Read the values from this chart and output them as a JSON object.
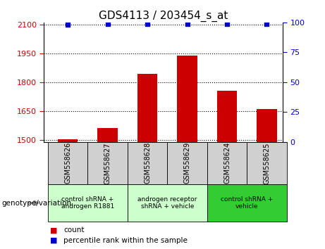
{
  "title": "GDS4113 / 203454_s_at",
  "samples": [
    "GSM558626",
    "GSM558627",
    "GSM558628",
    "GSM558629",
    "GSM558624",
    "GSM558625"
  ],
  "counts": [
    1504,
    1562,
    1843,
    1938,
    1755,
    1660
  ],
  "percentiles": [
    98,
    99,
    99,
    99,
    99,
    99
  ],
  "ylim_left": [
    1490,
    2110
  ],
  "ylim_right": [
    0,
    100
  ],
  "yticks_left": [
    1500,
    1650,
    1800,
    1950,
    2100
  ],
  "yticks_right": [
    0,
    25,
    50,
    75,
    100
  ],
  "bar_color": "#cc0000",
  "dot_color": "#0000cc",
  "groups": [
    {
      "label": "control shRNA +\nandrogen R1881",
      "span": [
        0,
        2
      ],
      "color": "#ccffcc"
    },
    {
      "label": "androgen receptor\nshRNA + vehicle",
      "span": [
        2,
        4
      ],
      "color": "#ccffcc"
    },
    {
      "label": "control shRNA +\nvehicle",
      "span": [
        4,
        6
      ],
      "color": "#33cc33"
    }
  ],
  "group_label": "genotype/variation",
  "legend_count_color": "#cc0000",
  "legend_pct_color": "#0000cc",
  "legend_count_label": "count",
  "legend_pct_label": "percentile rank within the sample",
  "sample_bg_color": "#d0d0d0",
  "group1_color": "#ccffcc",
  "group2_color": "#33cc33",
  "bar_width": 0.5,
  "xlim": [
    -0.6,
    5.4
  ]
}
